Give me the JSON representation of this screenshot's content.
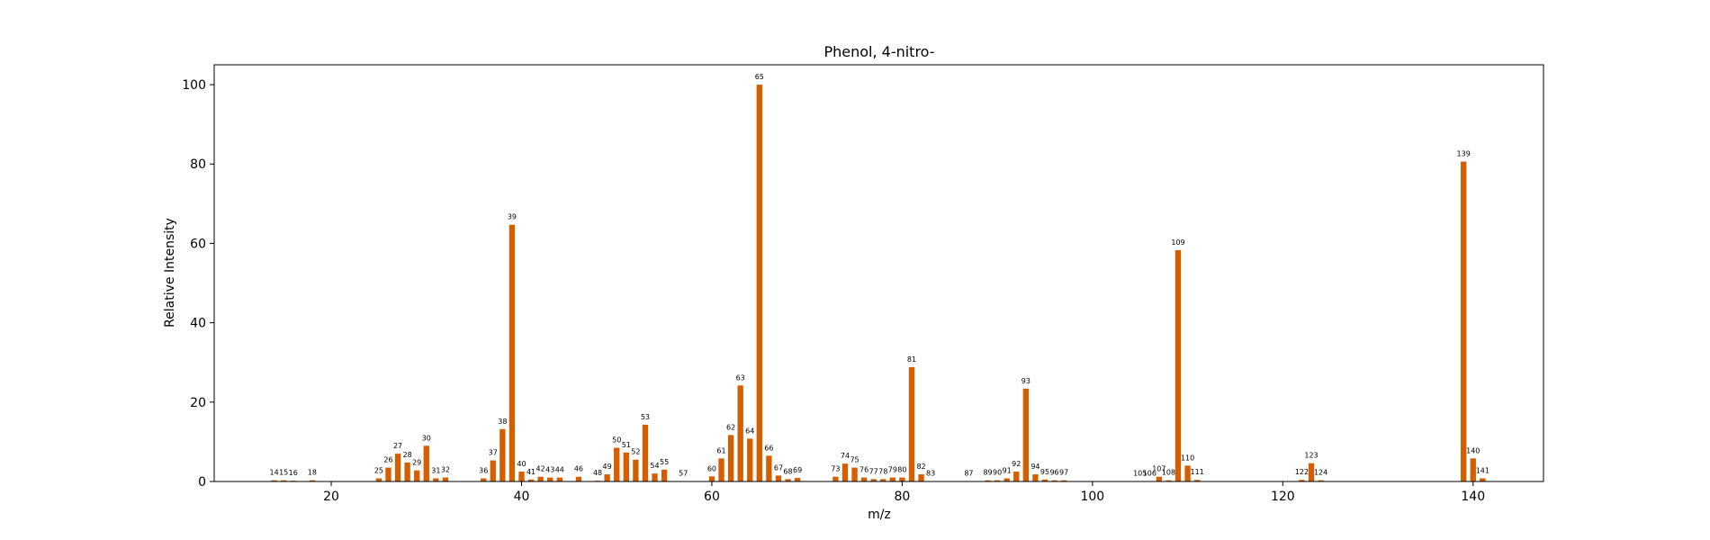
{
  "chart_data": {
    "type": "bar",
    "title": "Phenol, 4-nitro-",
    "xlabel": "m/z",
    "ylabel": "Relative Intensity",
    "xlim": [
      7.7,
      147.4
    ],
    "ylim": [
      0,
      105
    ],
    "xticks": [
      20,
      40,
      60,
      80,
      100,
      120,
      140
    ],
    "yticks": [
      0,
      20,
      40,
      60,
      80,
      100
    ],
    "grid": false,
    "bar_color": "#d55e00",
    "x": [
      14,
      15,
      16,
      18,
      25,
      26,
      27,
      28,
      29,
      30,
      31,
      32,
      36,
      37,
      38,
      39,
      40,
      41,
      42,
      43,
      44,
      46,
      48,
      49,
      50,
      51,
      52,
      53,
      54,
      55,
      57,
      60,
      61,
      62,
      63,
      64,
      65,
      66,
      67,
      68,
      69,
      73,
      74,
      75,
      76,
      77,
      78,
      79,
      80,
      81,
      82,
      83,
      87,
      89,
      90,
      91,
      92,
      93,
      94,
      95,
      96,
      97,
      105,
      106,
      107,
      108,
      109,
      110,
      111,
      122,
      123,
      124,
      139,
      140,
      141
    ],
    "values": [
      0.3,
      0.3,
      0.2,
      0.3,
      0.8,
      3.5,
      7.0,
      4.8,
      2.8,
      9.0,
      0.8,
      1.0,
      0.8,
      5.3,
      13.2,
      64.7,
      2.5,
      0.5,
      1.2,
      1.0,
      1.0,
      1.2,
      0.2,
      1.8,
      8.5,
      7.3,
      5.5,
      14.3,
      2.0,
      3.0,
      0.1,
      1.3,
      5.8,
      11.7,
      24.2,
      10.8,
      100.0,
      6.5,
      1.5,
      0.6,
      0.9,
      1.2,
      4.5,
      3.5,
      1.0,
      0.6,
      0.6,
      1.0,
      1.0,
      28.8,
      1.8,
      0.1,
      0.1,
      0.3,
      0.3,
      0.8,
      2.5,
      23.4,
      1.8,
      0.5,
      0.3,
      0.3,
      0.1,
      0.1,
      1.2,
      0.3,
      58.3,
      4.0,
      0.4,
      0.4,
      4.6,
      0.3,
      80.6,
      5.8,
      0.8
    ]
  }
}
